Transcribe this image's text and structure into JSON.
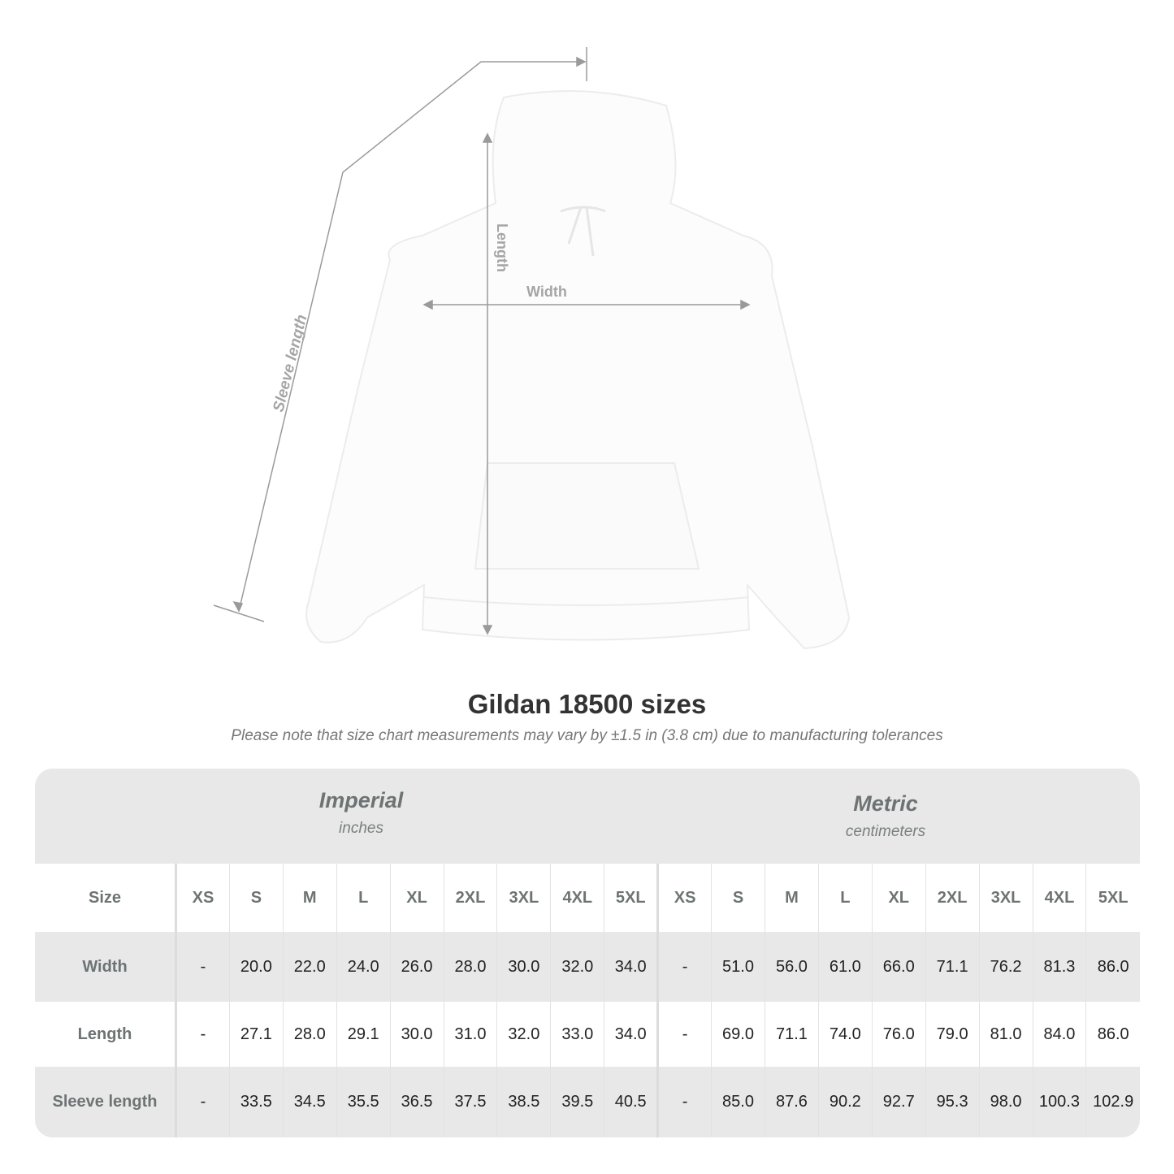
{
  "figure": {
    "labels": {
      "sleeve": "Sleeve length",
      "length": "Length",
      "width": "Width"
    }
  },
  "title": "Gildan 18500 sizes",
  "subtitle": "Please note that size chart measurements may vary by ±1.5 in (3.8 cm) due to manufacturing tolerances",
  "systems": [
    {
      "name": "Imperial",
      "unit": "inches"
    },
    {
      "name": "Metric",
      "unit": "centimeters"
    }
  ],
  "table": {
    "size_label": "Size",
    "sizes": [
      "XS",
      "S",
      "M",
      "L",
      "XL",
      "2XL",
      "3XL",
      "4XL",
      "5XL"
    ],
    "rows": [
      {
        "label": "Width",
        "imperial": [
          "-",
          "20.0",
          "22.0",
          "24.0",
          "26.0",
          "28.0",
          "30.0",
          "32.0",
          "34.0"
        ],
        "metric": [
          "-",
          "51.0",
          "56.0",
          "61.0",
          "66.0",
          "71.1",
          "76.2",
          "81.3",
          "86.0"
        ]
      },
      {
        "label": "Length",
        "imperial": [
          "-",
          "27.1",
          "28.0",
          "29.1",
          "30.0",
          "31.0",
          "32.0",
          "33.0",
          "34.0"
        ],
        "metric": [
          "-",
          "69.0",
          "71.1",
          "74.0",
          "76.0",
          "79.0",
          "81.0",
          "84.0",
          "86.0"
        ]
      },
      {
        "label": "Sleeve length",
        "imperial": [
          "-",
          "33.5",
          "34.5",
          "35.5",
          "36.5",
          "37.5",
          "38.5",
          "39.5",
          "40.5"
        ],
        "metric": [
          "-",
          "85.0",
          "87.6",
          "90.2",
          "92.7",
          "95.3",
          "98.0",
          "100.3",
          "102.9"
        ]
      }
    ]
  },
  "colors": {
    "header_text": "#6d7373",
    "band": "#e8e8e8",
    "title": "#333333",
    "dimension_lines": "#9a9a9a"
  }
}
